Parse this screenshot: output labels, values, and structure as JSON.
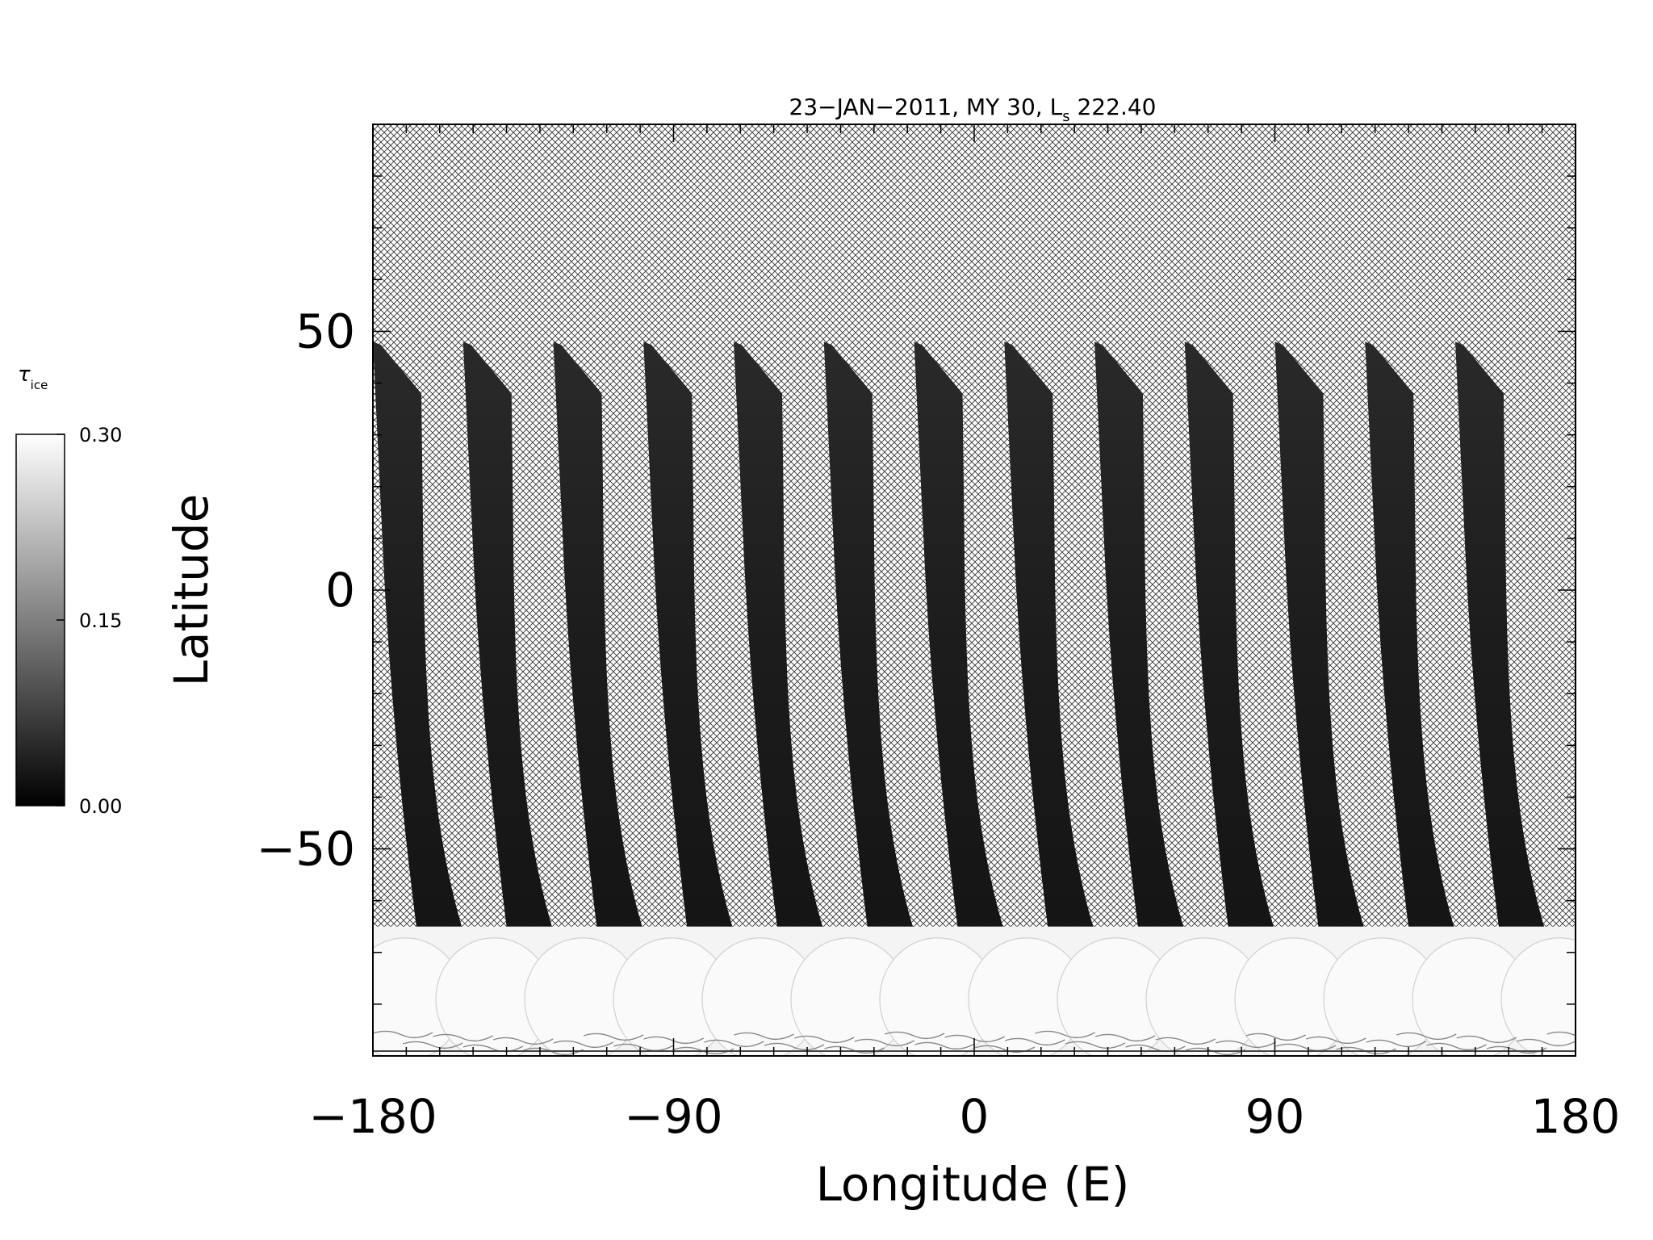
{
  "chart_data": {
    "type": "heatmap",
    "title_main": "23−JAN−2011, MY 30,  L",
    "title_sub": "s",
    "title_value": " 222.40",
    "xlabel": "Longitude (E)",
    "ylabel": "Latitude",
    "xlim": [
      -180,
      180
    ],
    "ylim": [
      -90,
      90
    ],
    "x_ticks": [
      -180,
      -90,
      0,
      90,
      180
    ],
    "x_tick_labels": [
      "−180",
      "−90",
      "0",
      "90",
      "180"
    ],
    "y_ticks": [
      50,
      0,
      -50
    ],
    "y_tick_labels": [
      "50",
      "0",
      "−50"
    ],
    "x_minor_step": 10,
    "y_minor_step": 10,
    "no_data_pattern": "crosshatch",
    "grid": false,
    "swath_start_longitudes": [
      -180,
      -153,
      -126,
      -99,
      -72,
      -45,
      -18,
      9,
      36,
      63,
      90,
      117,
      144
    ],
    "swath_lat_range": [
      -70,
      48
    ],
    "polar_cap_lat_range": [
      -90,
      -65
    ],
    "colorbar": {
      "label": "τ",
      "label_sub": "ice",
      "min": 0.0,
      "max": 0.3,
      "tick_values": [
        0.0,
        0.15,
        0.3
      ],
      "tick_labels": [
        "0.00",
        "0.15",
        "0.30"
      ],
      "colormap": [
        "#000000",
        "#ffffff"
      ]
    }
  }
}
